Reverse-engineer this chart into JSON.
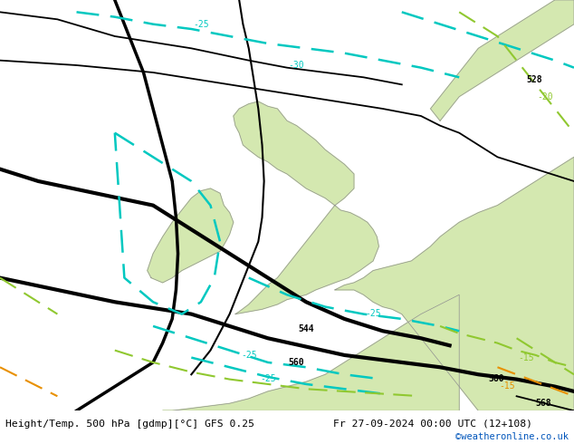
{
  "title_left": "Height/Temp. 500 hPa [gdmp][°C] GFS 0.25",
  "title_right": "Fr 27-09-2024 00:00 UTC (12+108)",
  "credit": "©weatheronline.co.uk",
  "bg_color": "#e8e8e8",
  "sea_color": "#e0e4e8",
  "land_color": "#d4e8b0",
  "coast_color": "#909090",
  "black_line_color": "#000000",
  "cyan_color": "#00c8c0",
  "green_color": "#90c830",
  "orange_color": "#e89000",
  "credit_color": "#0055bb"
}
